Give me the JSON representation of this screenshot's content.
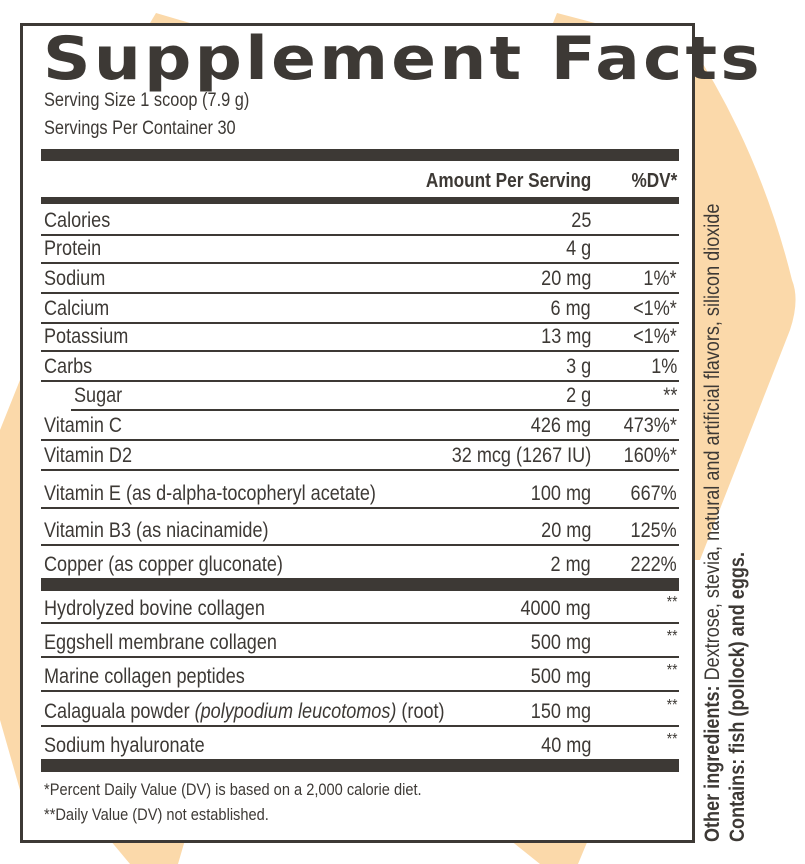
{
  "title": "Supplement Facts",
  "serving_size": "Serving Size 1 scoop (7.9 g)",
  "servings_per_container": "Servings Per Container 30",
  "header": {
    "amount": "Amount Per Serving",
    "dv": "%DV*"
  },
  "section1": [
    {
      "name": "Calories",
      "amount": "25",
      "dv": ""
    },
    {
      "name": "Protein",
      "amount": "4 g",
      "dv": ""
    },
    {
      "name": "Sodium",
      "amount": "20 mg",
      "dv": "1%*"
    },
    {
      "name": "Calcium",
      "amount": "6 mg",
      "dv": "<1%*"
    },
    {
      "name": "Potassium",
      "amount": "13 mg",
      "dv": "<1%*"
    },
    {
      "name": "Carbs",
      "amount": "3 g",
      "dv": "1%"
    },
    {
      "name": "Sugar",
      "amount": "2 g",
      "dv": "**"
    },
    {
      "name": "Vitamin C",
      "amount": "426 mg",
      "dv": "473%*"
    },
    {
      "name": "Vitamin D2",
      "amount": "32 mcg (1267 IU)",
      "dv": "160%*"
    },
    {
      "name": "Vitamin E (as d-alpha-tocopheryl acetate)",
      "amount": "100 mg",
      "dv": "667%"
    },
    {
      "name": "Vitamin B3 (as niacinamide)",
      "amount": "20 mg",
      "dv": "125%"
    },
    {
      "name": "Copper (as copper gluconate)",
      "amount": "2 mg",
      "dv": "222%"
    }
  ],
  "section2": [
    {
      "name": "Hydrolyzed bovine collagen",
      "amount": "4000 mg",
      "dv": "**"
    },
    {
      "name": "Eggshell membrane collagen",
      "amount": "500 mg",
      "dv": "**"
    },
    {
      "name": "Marine collagen peptides",
      "amount": "500 mg",
      "dv": "**"
    },
    {
      "name": "Calaguala powder",
      "name_italic": "(polypodium leucotomos)",
      "name_suffix": "(root)",
      "amount": "150 mg",
      "dv": "**"
    },
    {
      "name": "Sodium hyaluronate",
      "amount": "40 mg",
      "dv": "**"
    }
  ],
  "footnotes": [
    "*Percent Daily Value (DV) is based on a 2,000 calorie diet.",
    "**Daily Value (DV) not established."
  ],
  "side": {
    "other_label": "Other ingredients:",
    "other_text": " Dextrose, stevia, natural and artificial flavors, silicon dioxide",
    "contains": "Contains: fish (pollock) and eggs."
  },
  "colors": {
    "text": "#3d3935",
    "accent_peach": "#fbd9aa",
    "background": "#ffffff"
  }
}
